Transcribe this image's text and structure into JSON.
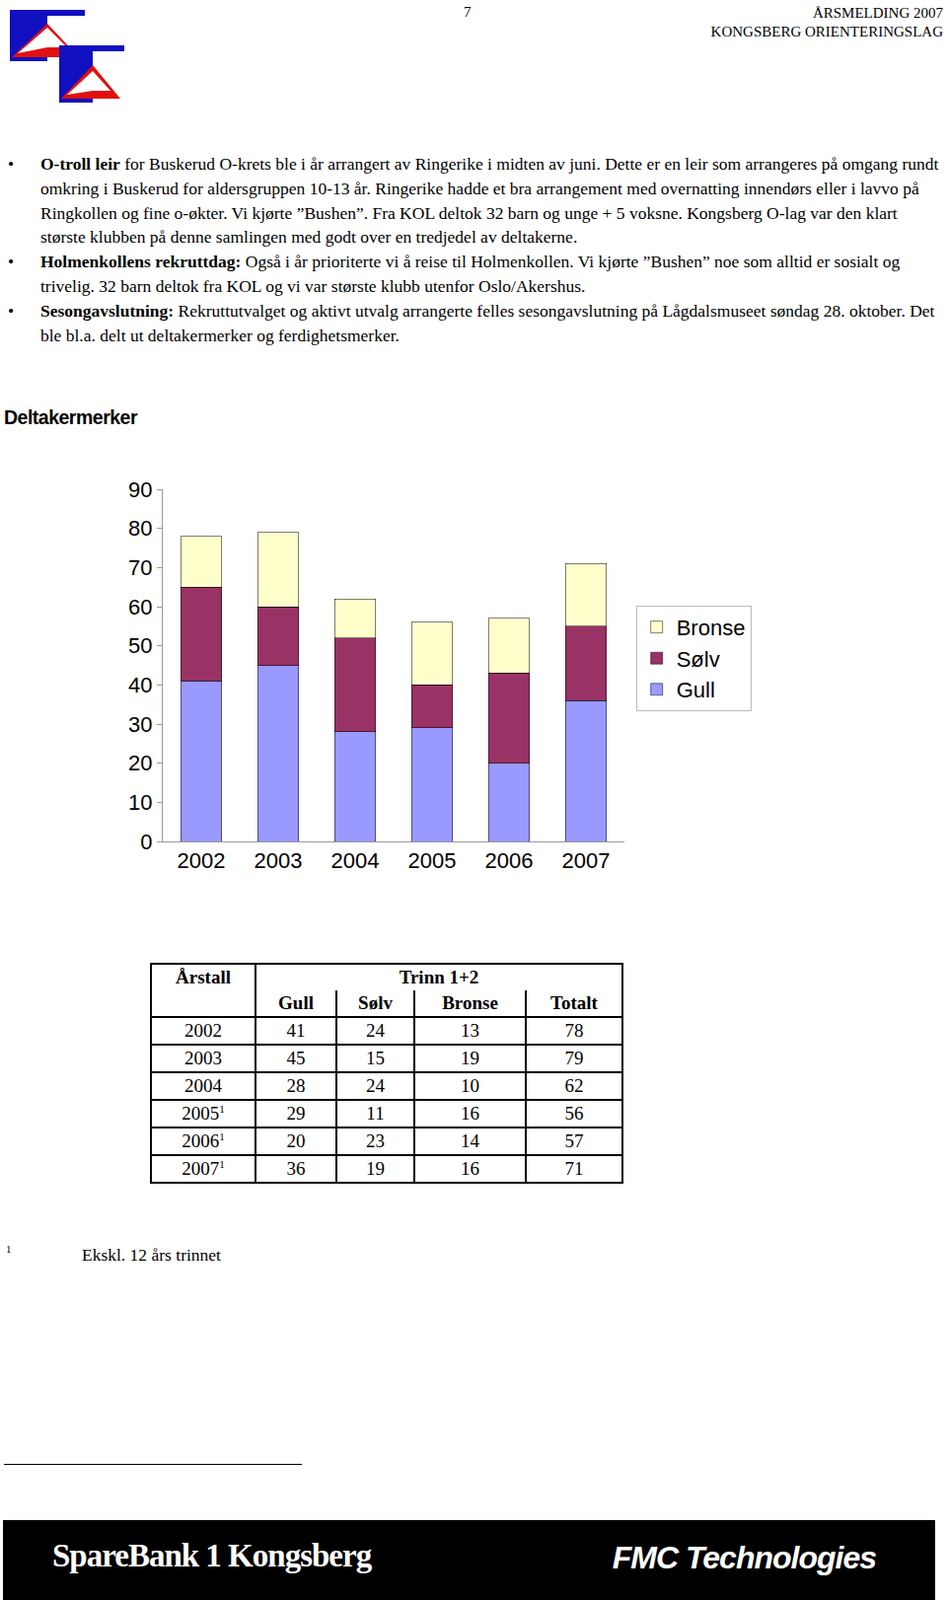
{
  "header": {
    "page": "7",
    "lines": [
      "ÅRSMELDING 2007",
      "KONGSBERG ORIENTERINGSLAG"
    ]
  },
  "bullets": [
    {
      "bold": "O-troll leir",
      "text": " for Buskerud O-krets ble i år arrangert av Ringerike i midten av juni. Dette er en leir som arrangeres på omgang rundt omkring i Buskerud for aldersgruppen 10-13 år. Ringerike hadde et bra arrangement med overnatting innendørs eller i lavvo på Ringkollen og fine o-økter. Vi kjørte ”Bushen”. Fra KOL deltok 32 barn og unge + 5 voksne. Kongsberg O-lag var den klart største klubben på denne samlingen med godt over en tredjedel av deltakerne."
    },
    {
      "bold": "Holmenkollens rekruttdag:",
      "text": " Også i år prioriterte vi å reise til Holmenkollen. Vi kjørte ”Bushen” noe som alltid er sosialt og trivelig. 32 barn deltok fra KOL og vi var største klubb utenfor Oslo/Akershus."
    },
    {
      "bold": "Sesongavslutning:",
      "text": " Rekruttutvalget og aktivt utvalg arrangerte felles sesongavslutning på Lågdalsmuseet søndag 28. oktober. Det ble bl.a. delt ut deltakermerker og ferdighetsmerker."
    }
  ],
  "heading": "Deltakermerker",
  "chart_data": {
    "type": "bar",
    "stacked": true,
    "categories": [
      "2002",
      "2003",
      "2004",
      "2005",
      "2006",
      "2007"
    ],
    "series": [
      {
        "name": "Gull",
        "color": "#9999ff",
        "values": [
          41,
          45,
          28,
          29,
          20,
          36
        ]
      },
      {
        "name": "Sølv",
        "color": "#993366",
        "values": [
          24,
          15,
          24,
          11,
          23,
          19
        ]
      },
      {
        "name": "Bronse",
        "color": "#ffffcc",
        "values": [
          13,
          19,
          10,
          16,
          14,
          16
        ]
      }
    ],
    "ylim": [
      0,
      90
    ],
    "yticks": [
      0,
      10,
      20,
      30,
      40,
      50,
      60,
      70,
      80,
      90
    ],
    "grid": false,
    "legend": "right"
  },
  "table": {
    "header": [
      "Årstall",
      "Trinn 1+2"
    ],
    "subheader": [
      "Gull",
      "Sølv",
      "Bronse",
      "Totalt"
    ],
    "rows": [
      {
        "year": "2002",
        "note": null,
        "cells": [
          41,
          24,
          13,
          78
        ]
      },
      {
        "year": "2003",
        "note": null,
        "cells": [
          45,
          15,
          19,
          79
        ]
      },
      {
        "year": "2004",
        "note": null,
        "cells": [
          28,
          24,
          10,
          62
        ]
      },
      {
        "year": "2005",
        "note": "1",
        "cells": [
          29,
          11,
          16,
          56
        ]
      },
      {
        "year": "2006",
        "note": "1",
        "cells": [
          20,
          23,
          14,
          57
        ]
      },
      {
        "year": "2007",
        "note": "1",
        "cells": [
          36,
          19,
          16,
          71
        ]
      }
    ]
  },
  "footnote": {
    "mark": "1",
    "text": "Ekskl. 12 års trinnet"
  },
  "footer": {
    "left": "SpareBank 1 Kongsberg",
    "right": "FMC Technologies"
  }
}
